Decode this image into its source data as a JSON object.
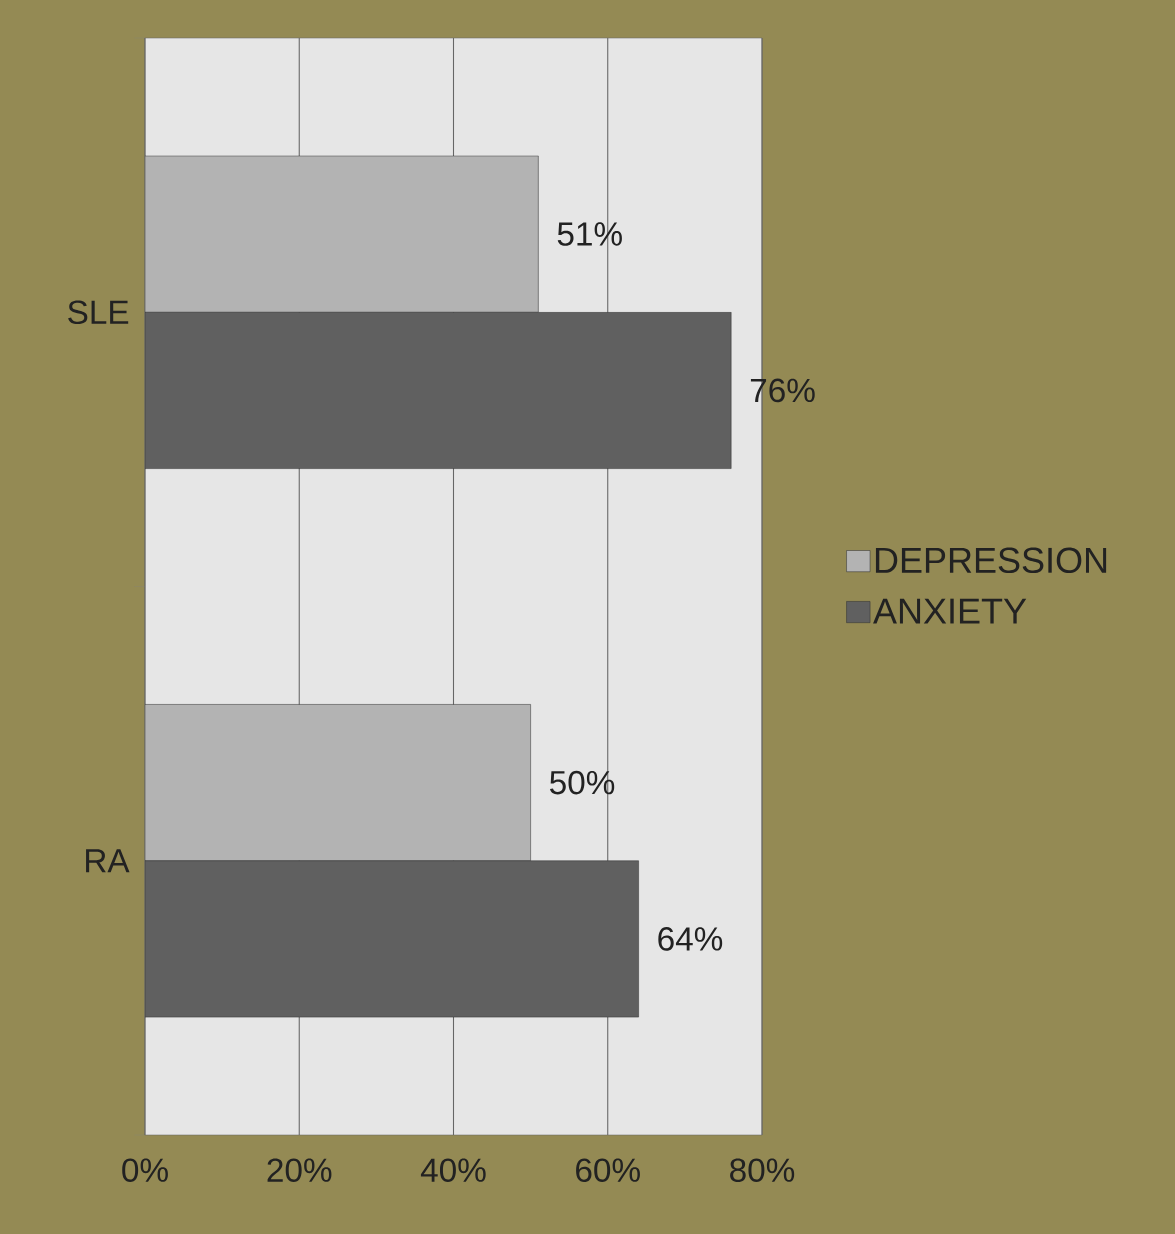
{
  "chart_data": {
    "type": "bar",
    "orientation": "horizontal",
    "categories": [
      "SLE",
      "RA"
    ],
    "series": [
      {
        "name": "DEPRESSION",
        "color": "#b3b3b3",
        "values": [
          51,
          50
        ],
        "value_labels": [
          "51%",
          "50%"
        ]
      },
      {
        "name": "ANXIETY",
        "color": "#606060",
        "values": [
          76,
          64
        ],
        "value_labels": [
          "76%",
          "64%"
        ]
      }
    ],
    "xlim": [
      0,
      80
    ],
    "xticks": [
      {
        "value": 0,
        "label": "0%"
      },
      {
        "value": 20,
        "label": "20%"
      },
      {
        "value": 40,
        "label": "40%"
      },
      {
        "value": 60,
        "label": "60%"
      },
      {
        "value": 80,
        "label": "80%"
      }
    ],
    "grid": "x",
    "legend": "right"
  }
}
